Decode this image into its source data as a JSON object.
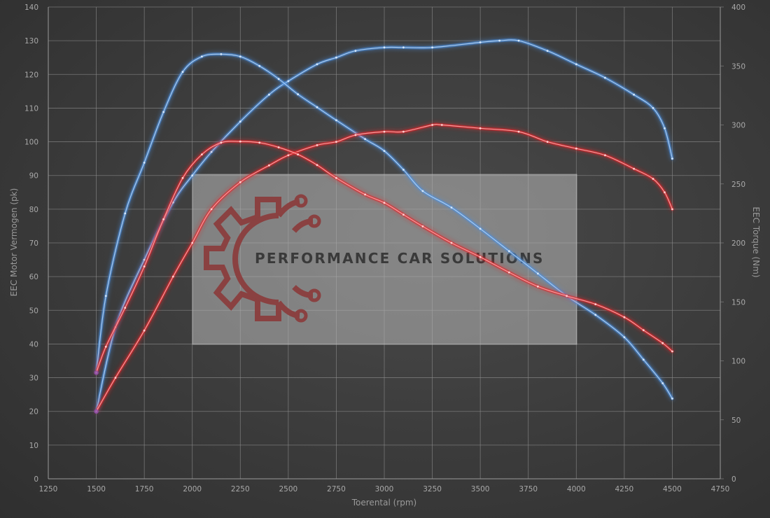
{
  "chart_data": {
    "type": "line",
    "xlabel": "Toerental (rpm)",
    "ylabel_left": "EEC Motor Vermogen (pk)",
    "ylabel_right": "EEC Torque (Nm)",
    "xlim": [
      1250,
      4750
    ],
    "ylim_left": [
      0,
      140
    ],
    "ylim_right": [
      0,
      400
    ],
    "x_ticks": [
      1250,
      1500,
      1750,
      2000,
      2250,
      2500,
      2750,
      3000,
      3250,
      3500,
      3750,
      4000,
      4250,
      4500,
      4750
    ],
    "y_ticks_left": [
      0,
      10,
      20,
      30,
      40,
      50,
      60,
      70,
      80,
      90,
      100,
      110,
      120,
      130,
      140
    ],
    "y_ticks_right": [
      0,
      50,
      100,
      150,
      200,
      250,
      300,
      350,
      400
    ],
    "grid": true,
    "series": [
      {
        "axis": "left",
        "color": "#4a90e2",
        "x": [
          1500,
          1600,
          1750,
          1900,
          2000,
          2100,
          2250,
          2400,
          2500,
          2650,
          2750,
          2850,
          3000,
          3100,
          3250,
          3500,
          3600,
          3700,
          3850,
          4000,
          4150,
          4300,
          4400,
          4460,
          4500
        ],
        "y": [
          20,
          45,
          65,
          82,
          90,
          97,
          106,
          114,
          118,
          123,
          125,
          127,
          128,
          128,
          128,
          129.5,
          130,
          130,
          127,
          123,
          119,
          114,
          110,
          104,
          95
        ]
      },
      {
        "axis": "right",
        "color": "#4a90e2",
        "x": [
          1500,
          1550,
          1650,
          1750,
          1850,
          1950,
          2050,
          2150,
          2250,
          2350,
          2450,
          2550,
          2650,
          2750,
          2900,
          3000,
          3100,
          3200,
          3350,
          3500,
          3650,
          3800,
          3950,
          4100,
          4250,
          4350,
          4450,
          4500
        ],
        "y": [
          90,
          155,
          225,
          268,
          311,
          345,
          358,
          360,
          358,
          350,
          339,
          326,
          315,
          304,
          288,
          278,
          262,
          244,
          230,
          212,
          193,
          174,
          155,
          139,
          120,
          101,
          81,
          68
        ]
      },
      {
        "axis": "left",
        "color": "#e3242b",
        "x": [
          1500,
          1600,
          1750,
          1900,
          2000,
          2100,
          2250,
          2400,
          2500,
          2650,
          2750,
          2850,
          3000,
          3100,
          3250,
          3300,
          3500,
          3700,
          3850,
          4000,
          4150,
          4300,
          4400,
          4460,
          4500
        ],
        "y": [
          20,
          30,
          44,
          60,
          70,
          80,
          88,
          93,
          96,
          99,
          100,
          102,
          103,
          103,
          105,
          105,
          104,
          103,
          100,
          98,
          96,
          92,
          89,
          85,
          80
        ]
      },
      {
        "axis": "right",
        "color": "#e3242b",
        "x": [
          1500,
          1550,
          1650,
          1750,
          1850,
          1950,
          2050,
          2150,
          2250,
          2350,
          2450,
          2550,
          2650,
          2750,
          2900,
          3000,
          3100,
          3200,
          3350,
          3500,
          3650,
          3800,
          3950,
          4100,
          4250,
          4350,
          4450,
          4500
        ],
        "y": [
          90,
          112,
          145,
          180,
          220,
          255,
          275,
          285,
          286,
          285,
          281,
          275,
          266,
          255,
          241,
          234,
          224,
          214,
          200,
          188,
          175,
          163,
          155,
          148,
          137,
          126,
          115,
          108
        ]
      }
    ]
  },
  "watermark": {
    "text": "PERFORMANCE CAR SOLUTIONS",
    "logo_color": "#8b3a3a"
  }
}
